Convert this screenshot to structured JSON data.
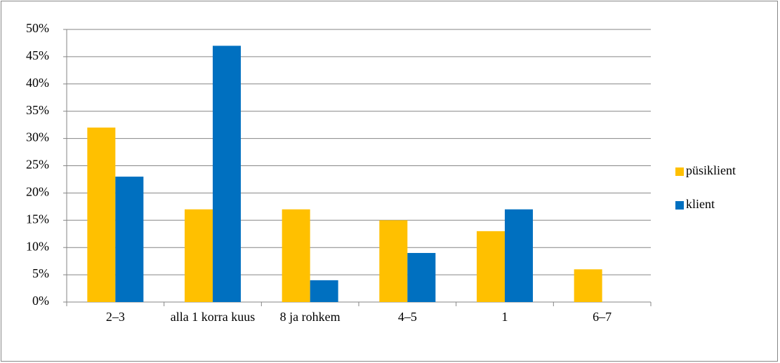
{
  "chart_data": {
    "type": "bar",
    "categories": [
      "2–3",
      "alla 1 korra kuus",
      "8 ja rohkem",
      "4–5",
      "1",
      "6–7"
    ],
    "series": [
      {
        "name": "püsiklient",
        "color": "#ffc000",
        "values": [
          32,
          17,
          17,
          15,
          13,
          6
        ]
      },
      {
        "name": "klient",
        "color": "#0070c0",
        "values": [
          23,
          47,
          4,
          9,
          17,
          0
        ]
      }
    ],
    "ylim": [
      0,
      50
    ],
    "yticks": [
      {
        "value": 0,
        "label": "0%"
      },
      {
        "value": 5,
        "label": "5%"
      },
      {
        "value": 10,
        "label": "10%"
      },
      {
        "value": 15,
        "label": "15%"
      },
      {
        "value": 20,
        "label": "20%"
      },
      {
        "value": 25,
        "label": "25%"
      },
      {
        "value": 30,
        "label": "30%"
      },
      {
        "value": 35,
        "label": "35%"
      },
      {
        "value": 40,
        "label": "40%"
      },
      {
        "value": 45,
        "label": "45%"
      },
      {
        "value": 50,
        "label": "50%"
      }
    ],
    "grid": true,
    "legend": "right"
  }
}
